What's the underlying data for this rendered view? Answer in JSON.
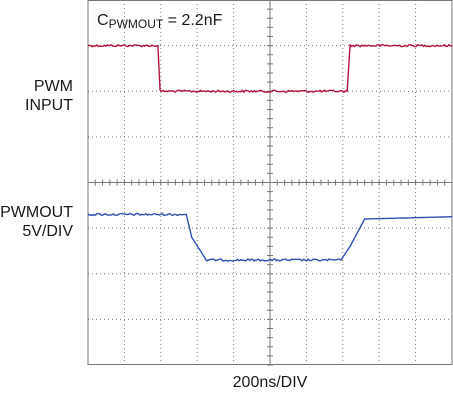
{
  "annotation": {
    "symbol": "C",
    "subscript": "PWMOUT",
    "value_text": " = 2.2nF"
  },
  "left_labels": {
    "pwm_input": {
      "line1": "PWM",
      "line2": "INPUT"
    },
    "pwmout": {
      "line1": "PWMOUT",
      "line2": "5V/DIV"
    }
  },
  "x_axis_label": "200ns/DIV",
  "colors": {
    "pwm_input": "#b0143c",
    "pwmout": "#2f52b0",
    "grid": "#777777"
  },
  "chart_data": {
    "type": "line",
    "xlabel": "200ns/DIV",
    "ylabel": "5V/DIV",
    "xlim": [
      0,
      10
    ],
    "ylim": [
      0,
      8
    ],
    "grid": true,
    "series": [
      {
        "name": "PWM INPUT",
        "x": [
          0,
          1.92,
          1.98,
          7.12,
          7.2,
          10
        ],
        "y": [
          7.0,
          7.0,
          6.0,
          6.0,
          7.0,
          7.0
        ]
      },
      {
        "name": "PWMOUT",
        "x": [
          0,
          2.7,
          2.85,
          3.25,
          6.95,
          7.2,
          7.6,
          10
        ],
        "y": [
          3.3,
          3.3,
          2.8,
          2.3,
          2.3,
          2.6,
          3.2,
          3.25
        ]
      }
    ]
  }
}
